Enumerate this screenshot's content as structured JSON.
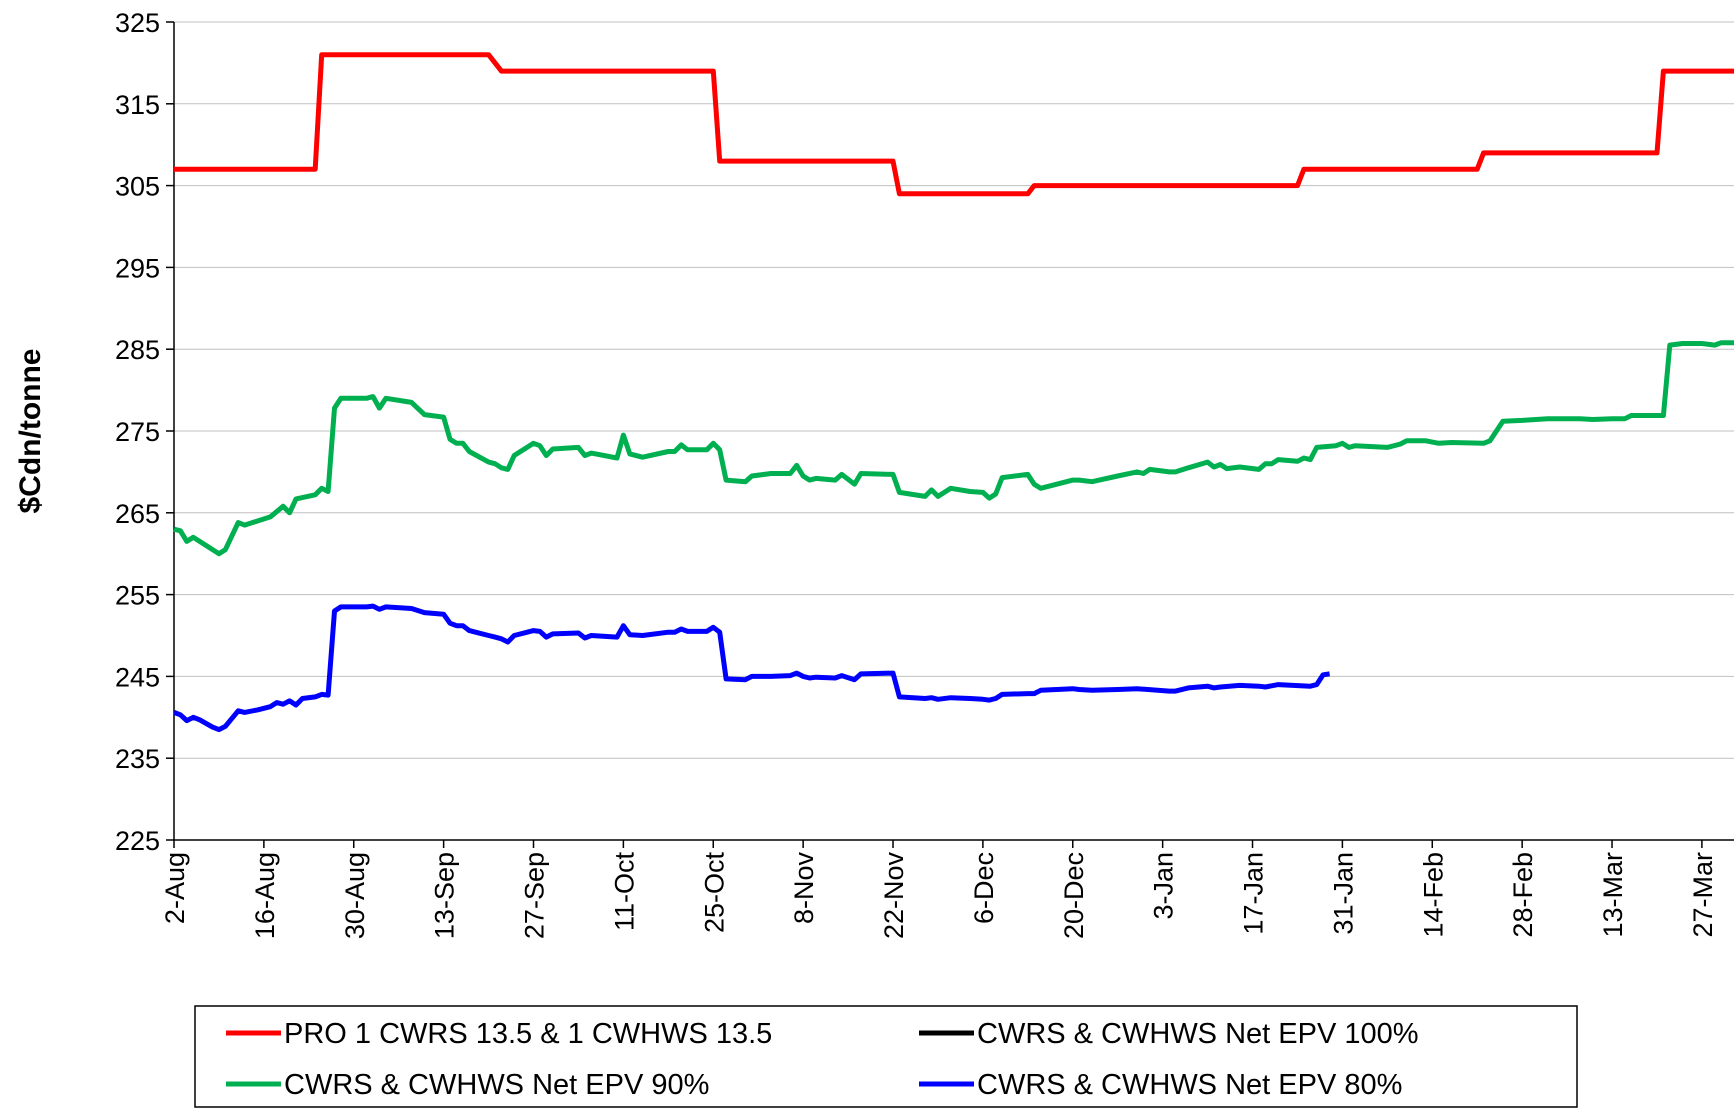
{
  "chart_data": {
    "type": "line",
    "y_label": "$Cdn/tonne",
    "xlim": [
      0,
      243
    ],
    "xticks": [
      {
        "value": 0,
        "label": "2-Aug"
      },
      {
        "value": 14,
        "label": "16-Aug"
      },
      {
        "value": 28,
        "label": "30-Aug"
      },
      {
        "value": 42,
        "label": "13-Sep"
      },
      {
        "value": 56,
        "label": "27-Sep"
      },
      {
        "value": 70,
        "label": "11-Oct"
      },
      {
        "value": 84,
        "label": "25-Oct"
      },
      {
        "value": 98,
        "label": "8-Nov"
      },
      {
        "value": 112,
        "label": "22-Nov"
      },
      {
        "value": 126,
        "label": "6-Dec"
      },
      {
        "value": 140,
        "label": "20-Dec"
      },
      {
        "value": 154,
        "label": "3-Jan"
      },
      {
        "value": 168,
        "label": "17-Jan"
      },
      {
        "value": 182,
        "label": "31-Jan"
      },
      {
        "value": 196,
        "label": "14-Feb"
      },
      {
        "value": 210,
        "label": "28-Feb"
      },
      {
        "value": 224,
        "label": "13-Mar"
      },
      {
        "value": 238,
        "label": "27-Mar"
      }
    ],
    "ylim": [
      225,
      325
    ],
    "yticks": [
      225,
      235,
      245,
      255,
      265,
      275,
      285,
      295,
      305,
      315,
      325
    ],
    "grid": true,
    "legend": "bottom",
    "series": [
      {
        "name": "PRO 1 CWRS 13.5 & 1 CWHWS 13.5",
        "color": "#ff0000",
        "x": [
          0,
          22,
          23,
          49,
          51,
          84,
          85,
          112,
          113,
          133,
          134,
          175,
          176,
          203,
          204,
          231,
          232,
          243
        ],
        "values": [
          307,
          307,
          321,
          321,
          319,
          319,
          308,
          308,
          304,
          304,
          305,
          305,
          307,
          307,
          309,
          309,
          319,
          319
        ]
      },
      {
        "name": "CWRS & CWHWS Net EPV 100%",
        "color": "#000000",
        "x": [],
        "values": []
      },
      {
        "name": "CWRS & CWHWS Net EPV 90%",
        "color": "#00b050",
        "x": [
          0,
          1,
          2,
          3,
          5,
          7,
          8,
          10,
          11,
          13,
          15,
          17,
          18,
          19,
          22,
          23,
          24,
          25,
          26,
          30,
          31,
          32,
          33,
          37,
          39,
          42,
          43,
          44,
          45,
          46,
          49,
          50,
          51,
          52,
          53,
          56,
          57,
          58,
          59,
          63,
          64,
          65,
          69,
          70,
          71,
          73,
          77,
          78,
          79,
          80,
          83,
          84,
          85,
          86,
          89,
          90,
          93,
          96,
          97,
          98,
          99,
          100,
          103,
          104,
          106,
          107,
          112,
          113,
          117,
          118,
          119,
          121,
          124,
          126,
          127,
          128,
          129,
          133,
          134,
          135,
          140,
          141,
          143,
          147,
          150,
          151,
          152,
          155,
          156,
          158,
          161,
          162,
          163,
          164,
          166,
          169,
          170,
          171,
          172,
          175,
          176,
          177,
          178,
          181,
          182,
          183,
          184,
          189,
          191,
          192,
          195,
          197,
          199,
          204,
          205,
          207,
          210,
          214,
          219,
          221,
          224,
          226,
          227,
          232,
          233,
          235,
          238,
          240,
          241,
          243
        ],
        "values": [
          263,
          262.8,
          261.5,
          262,
          261,
          260,
          260.5,
          263.8,
          263.5,
          264,
          264.5,
          265.8,
          265,
          266.7,
          267.2,
          268,
          267.6,
          277.8,
          279,
          279,
          279.2,
          277.8,
          279,
          278.5,
          277,
          276.7,
          274,
          273.5,
          273.5,
          272.5,
          271.2,
          271,
          270.5,
          270.3,
          272,
          273.5,
          273.2,
          272,
          272.8,
          273,
          272,
          272.3,
          271.7,
          274.5,
          272.2,
          271.8,
          272.5,
          272.5,
          273.3,
          272.7,
          272.7,
          273.5,
          272.7,
          269,
          268.8,
          269.5,
          269.8,
          269.8,
          270.8,
          269.5,
          269,
          269.2,
          269,
          269.7,
          268.5,
          269.8,
          269.7,
          267.5,
          267,
          267.8,
          267,
          268,
          267.6,
          267.5,
          266.8,
          267.3,
          269.3,
          269.7,
          268.5,
          268,
          269,
          269,
          268.8,
          269.5,
          270,
          269.8,
          270.3,
          270,
          270,
          270.5,
          271.2,
          270.6,
          270.9,
          270.4,
          270.6,
          270.3,
          271,
          271,
          271.5,
          271.3,
          271.7,
          271.5,
          273,
          273.2,
          273.5,
          273,
          273.2,
          273,
          273.4,
          273.8,
          273.8,
          273.5,
          273.6,
          273.5,
          273.8,
          276.2,
          276.3,
          276.5,
          276.5,
          276.4,
          276.5,
          276.5,
          276.9,
          276.9,
          285.5,
          285.7,
          285.7,
          285.5,
          285.8,
          285.8
        ]
      },
      {
        "name": "CWRS & CWHWS Net EPV 80%",
        "color": "#0000ff",
        "x": [
          0,
          1,
          2,
          3,
          4,
          6,
          7,
          8,
          10,
          11,
          13,
          15,
          16,
          17,
          18,
          19,
          20,
          22,
          23,
          24,
          25,
          26,
          30,
          31,
          32,
          33,
          37,
          39,
          42,
          43,
          44,
          45,
          46,
          49,
          50,
          51,
          52,
          53,
          56,
          57,
          58,
          59,
          63,
          64,
          65,
          69,
          70,
          71,
          73,
          77,
          78,
          79,
          80,
          83,
          84,
          85,
          86,
          89,
          90,
          93,
          96,
          97,
          98,
          99,
          100,
          103,
          104,
          106,
          107,
          112,
          113,
          117,
          118,
          119,
          121,
          124,
          126,
          127,
          128,
          129,
          133,
          134,
          135,
          140,
          141,
          143,
          147,
          150,
          155,
          156,
          158,
          161,
          162,
          163,
          166,
          169,
          170,
          172,
          177,
          178,
          179,
          180
        ],
        "values": [
          240.6,
          240.3,
          239.6,
          240,
          239.7,
          238.8,
          238.5,
          238.9,
          240.8,
          240.6,
          240.9,
          241.3,
          241.8,
          241.6,
          242,
          241.5,
          242.3,
          242.5,
          242.8,
          242.7,
          253,
          253.5,
          253.5,
          253.6,
          253.2,
          253.5,
          253.3,
          252.8,
          252.6,
          251.5,
          251.2,
          251.2,
          250.6,
          250,
          249.8,
          249.6,
          249.2,
          250,
          250.6,
          250.5,
          249.8,
          250.2,
          250.3,
          249.7,
          250,
          249.8,
          251.2,
          250.1,
          250,
          250.4,
          250.4,
          250.8,
          250.5,
          250.5,
          251,
          250.4,
          244.7,
          244.6,
          245,
          245,
          245.1,
          245.4,
          245,
          244.8,
          244.9,
          244.8,
          245.1,
          244.6,
          245.3,
          245.4,
          242.5,
          242.3,
          242.4,
          242.2,
          242.4,
          242.3,
          242.2,
          242.1,
          242.3,
          242.8,
          242.9,
          242.9,
          243.3,
          243.5,
          243.4,
          243.3,
          243.4,
          243.5,
          243.2,
          243.2,
          243.6,
          243.8,
          243.6,
          243.7,
          243.9,
          243.8,
          243.7,
          244,
          243.8,
          244,
          245.2,
          245.3
        ]
      }
    ]
  }
}
